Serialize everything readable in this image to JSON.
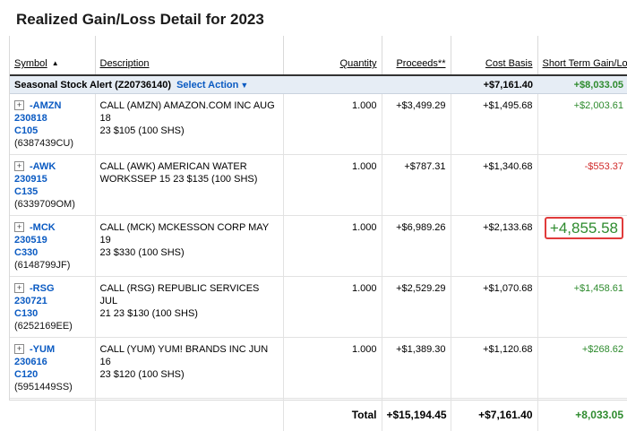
{
  "title": "Realized Gain/Loss Detail for 2023",
  "columns": {
    "symbol": "Symbol",
    "description": "Description",
    "quantity": "Quantity",
    "proceeds": "Proceeds**",
    "cost_basis": "Cost Basis",
    "short_term": "Short Term Gain/Loss"
  },
  "account": {
    "name": "Seasonal Stock Alert (Z20736140)",
    "select_action": "Select Action",
    "cost_basis": "+$7,161.40",
    "short_term": "+$8,033.05"
  },
  "rows": [
    {
      "sym1": "-AMZN",
      "sym2": "230818",
      "sym3": "C105",
      "acct": "(6387439CU)",
      "desc1": "CALL (AMZN) AMAZON.COM INC AUG 18",
      "desc2": "23 $105 (100 SHS)",
      "qty": "1.000",
      "proceeds": "+$3,499.29",
      "cost": "+$1,495.68",
      "st": "+$2,003.61"
    },
    {
      "sym1": "-AWK",
      "sym2": "230915",
      "sym3": "C135",
      "acct": "(6339709OM)",
      "desc1": "CALL (AWK) AMERICAN WATER",
      "desc2": "WORKSSEP 15 23 $135 (100 SHS)",
      "qty": "1.000",
      "proceeds": "+$787.31",
      "cost": "+$1,340.68",
      "st": "-$553.37"
    },
    {
      "sym1": "-MCK",
      "sym2": "230519",
      "sym3": "C330",
      "acct": "(6148799JF)",
      "desc1": "CALL (MCK) MCKESSON CORP MAY 19",
      "desc2": "23 $330 (100 SHS)",
      "qty": "1.000",
      "proceeds": "+$6,989.26",
      "cost": "+$2,133.68",
      "st": "+4,855.58"
    },
    {
      "sym1": "-RSG",
      "sym2": "230721",
      "sym3": "C130",
      "acct": "(6252169EE)",
      "desc1": "CALL (RSG) REPUBLIC SERVICES JUL",
      "desc2": "21 23 $130 (100 SHS)",
      "qty": "1.000",
      "proceeds": "+$2,529.29",
      "cost": "+$1,070.68",
      "st": "+$1,458.61"
    },
    {
      "sym1": "-YUM",
      "sym2": "230616",
      "sym3": "C120",
      "acct": "(5951449SS)",
      "desc1": "CALL (YUM) YUM! BRANDS INC JUN 16",
      "desc2": "23 $120 (100 SHS)",
      "qty": "1.000",
      "proceeds": "+$1,389.30",
      "cost": "+$1,120.68",
      "st": "+$268.62"
    }
  ],
  "total": {
    "label": "Total",
    "proceeds": "+$15,194.45",
    "cost": "+$7,161.40",
    "st": "+8,033.05"
  },
  "colors": {
    "gain": "#2e8b2e",
    "loss": "#d12b2b",
    "link": "#0a5ac2",
    "highlight_border": "#e03b3b"
  }
}
